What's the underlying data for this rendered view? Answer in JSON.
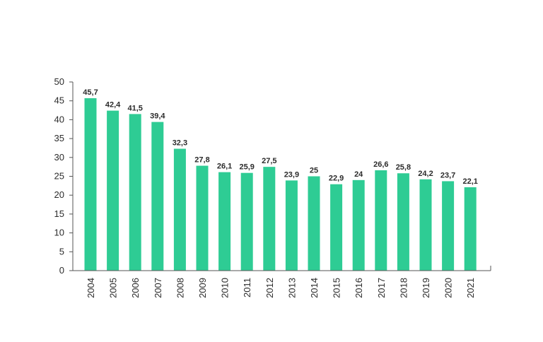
{
  "chart_data": {
    "type": "bar",
    "categories": [
      "2004",
      "2005",
      "2006",
      "2007",
      "2008",
      "2009",
      "2010",
      "2011",
      "2012",
      "2013",
      "2014",
      "2015",
      "2016",
      "2017",
      "2018",
      "2019",
      "2020",
      "2021"
    ],
    "values": [
      45.7,
      42.4,
      41.5,
      39.4,
      32.3,
      27.8,
      26.1,
      25.9,
      27.5,
      23.9,
      25,
      22.9,
      24,
      26.6,
      25.8,
      24.2,
      23.7,
      22.1
    ],
    "data_labels": [
      "45,7",
      "42,4",
      "41,5",
      "39,4",
      "32,3",
      "27,8",
      "26,1",
      "25,9",
      "27,5",
      "23,9",
      "25",
      "22,9",
      "24",
      "26,6",
      "25,8",
      "24,2",
      "23,7",
      "22,1"
    ],
    "y_ticks": [
      "0",
      "5",
      "10",
      "15",
      "20",
      "25",
      "30",
      "35",
      "40",
      "45",
      "50"
    ],
    "ylim": [
      0,
      50
    ],
    "grid": false,
    "bar_color": "#2ecc94",
    "axis_color": "#555555",
    "x_tick_rotation": "vertical"
  }
}
